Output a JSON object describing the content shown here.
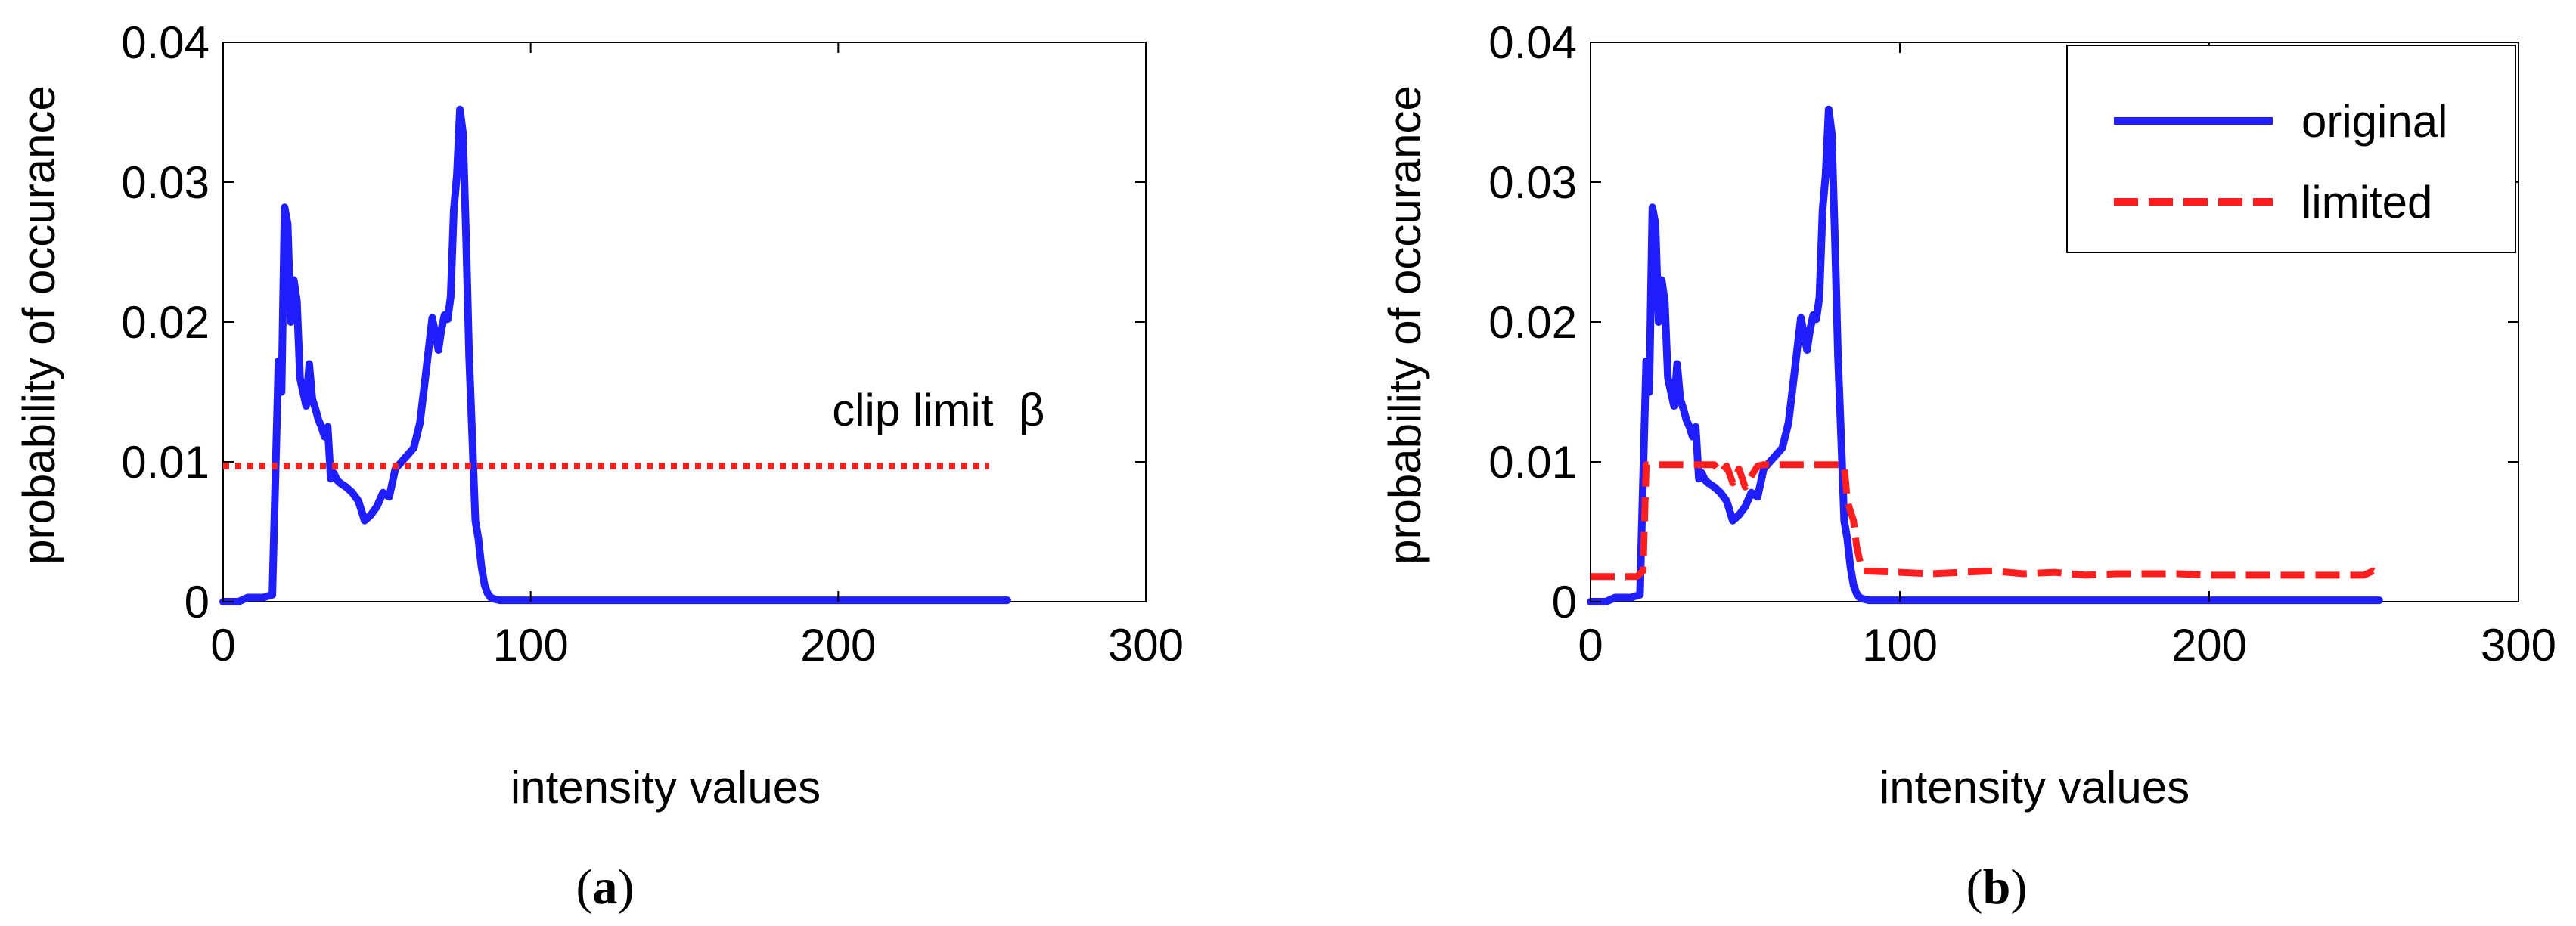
{
  "chart_data": [
    {
      "type": "line",
      "panel_label": "a",
      "xlabel": "intensity values",
      "ylabel": "probability of occurance",
      "xlim": [
        0,
        300
      ],
      "ylim": [
        0,
        0.04
      ],
      "xticks": [
        "0",
        "100",
        "200",
        "300"
      ],
      "yticks": [
        "0",
        "0.01",
        "0.02",
        "0.03",
        "0.04"
      ],
      "grid": false,
      "legend": null,
      "annotation": {
        "text": "clip limit  β",
        "x": 198,
        "y": 0.0126
      },
      "series": [
        {
          "color": "#1e1eff",
          "dash": "solid",
          "x": [
            0,
            5,
            8,
            10,
            13,
            16,
            18,
            19,
            20,
            21,
            22,
            23,
            24,
            25,
            26,
            27,
            28,
            29,
            30,
            31,
            32,
            33,
            34,
            35,
            36,
            37,
            38,
            40,
            42,
            44,
            46,
            48,
            50,
            52,
            54,
            56,
            58,
            60,
            62,
            64,
            66,
            68,
            70,
            71,
            72,
            73,
            74,
            75,
            76,
            77,
            78,
            79,
            80,
            81,
            82,
            83,
            84,
            85,
            86,
            87,
            88,
            90,
            92,
            95,
            100,
            150,
            200,
            255
          ],
          "y": [
            0,
            0,
            0.0003,
            0.0003,
            0.0003,
            0.0005,
            0.0172,
            0.015,
            0.0282,
            0.027,
            0.02,
            0.023,
            0.0215,
            0.016,
            0.015,
            0.014,
            0.017,
            0.0145,
            0.0138,
            0.013,
            0.0125,
            0.0118,
            0.0125,
            0.0088,
            0.0092,
            0.0087,
            0.0085,
            0.0082,
            0.0078,
            0.0072,
            0.0058,
            0.0062,
            0.0068,
            0.0078,
            0.0075,
            0.0095,
            0.01,
            0.0105,
            0.011,
            0.0128,
            0.0165,
            0.0203,
            0.018,
            0.0195,
            0.0205,
            0.0202,
            0.0218,
            0.028,
            0.0305,
            0.0352,
            0.0335,
            0.026,
            0.0175,
            0.0118,
            0.0058,
            0.0045,
            0.0025,
            0.0012,
            0.0006,
            0.0003,
            0.0002,
            0.0001,
            0.0001,
            0.0001,
            0.0001,
            0.0001,
            0.0001,
            0.0001
          ]
        },
        {
          "color": "#ff1e1e",
          "dash": "dotted",
          "x": [
            0,
            249
          ],
          "y": [
            0.0097,
            0.0097
          ]
        }
      ]
    },
    {
      "type": "line",
      "panel_label": "b",
      "xlabel": "intensity values",
      "ylabel": "probability of occurance",
      "xlim": [
        0,
        300
      ],
      "ylim": [
        0,
        0.04
      ],
      "xticks": [
        "0",
        "100",
        "200",
        "300"
      ],
      "yticks": [
        "0",
        "0.01",
        "0.02",
        "0.03",
        "0.04"
      ],
      "grid": false,
      "legend": "top-right",
      "series": [
        {
          "name": "original",
          "color": "#1e1eff",
          "dash": "solid",
          "x": [
            0,
            5,
            8,
            10,
            13,
            16,
            18,
            19,
            20,
            21,
            22,
            23,
            24,
            25,
            26,
            27,
            28,
            29,
            30,
            31,
            32,
            33,
            34,
            35,
            36,
            37,
            38,
            40,
            42,
            44,
            46,
            48,
            50,
            52,
            54,
            56,
            58,
            60,
            62,
            64,
            66,
            68,
            70,
            71,
            72,
            73,
            74,
            75,
            76,
            77,
            78,
            79,
            80,
            81,
            82,
            83,
            84,
            85,
            86,
            87,
            88,
            90,
            92,
            95,
            100,
            150,
            200,
            255
          ],
          "y": [
            0,
            0,
            0.0003,
            0.0003,
            0.0003,
            0.0005,
            0.0172,
            0.015,
            0.0282,
            0.027,
            0.02,
            0.023,
            0.0215,
            0.016,
            0.015,
            0.014,
            0.017,
            0.0145,
            0.0138,
            0.013,
            0.0125,
            0.0118,
            0.0125,
            0.0088,
            0.0092,
            0.0087,
            0.0085,
            0.0082,
            0.0078,
            0.0072,
            0.0058,
            0.0062,
            0.0068,
            0.0078,
            0.0075,
            0.0095,
            0.01,
            0.0105,
            0.011,
            0.0128,
            0.0165,
            0.0203,
            0.018,
            0.0195,
            0.0205,
            0.0202,
            0.0218,
            0.028,
            0.0305,
            0.0352,
            0.0335,
            0.026,
            0.0175,
            0.0118,
            0.0058,
            0.0045,
            0.0025,
            0.0012,
            0.0006,
            0.0003,
            0.0002,
            0.0001,
            0.0001,
            0.0001,
            0.0001,
            0.0001,
            0.0001,
            0.0001
          ]
        },
        {
          "name": "limited",
          "color": "#ff1e1e",
          "dash": "dashed",
          "x": [
            0,
            10,
            15,
            17,
            18,
            19,
            20,
            40,
            42,
            44,
            46,
            48,
            50,
            52,
            54,
            56,
            58,
            60,
            62,
            82,
            83,
            84,
            85,
            86,
            87,
            88,
            100,
            110,
            120,
            130,
            140,
            150,
            160,
            170,
            180,
            190,
            200,
            210,
            220,
            230,
            240,
            250,
            253,
            255
          ],
          "y": [
            0.0018,
            0.0018,
            0.0018,
            0.0022,
            0.0098,
            0.0098,
            0.0098,
            0.0098,
            0.0092,
            0.0097,
            0.0085,
            0.0095,
            0.0082,
            0.009,
            0.0097,
            0.0098,
            0.0098,
            0.0098,
            0.0098,
            0.0098,
            0.0072,
            0.0065,
            0.0058,
            0.004,
            0.003,
            0.0022,
            0.0021,
            0.002,
            0.0021,
            0.0022,
            0.002,
            0.0021,
            0.0019,
            0.002,
            0.002,
            0.002,
            0.0019,
            0.0019,
            0.0019,
            0.0019,
            0.0019,
            0.0019,
            0.0022,
            0.0019
          ]
        }
      ]
    }
  ]
}
